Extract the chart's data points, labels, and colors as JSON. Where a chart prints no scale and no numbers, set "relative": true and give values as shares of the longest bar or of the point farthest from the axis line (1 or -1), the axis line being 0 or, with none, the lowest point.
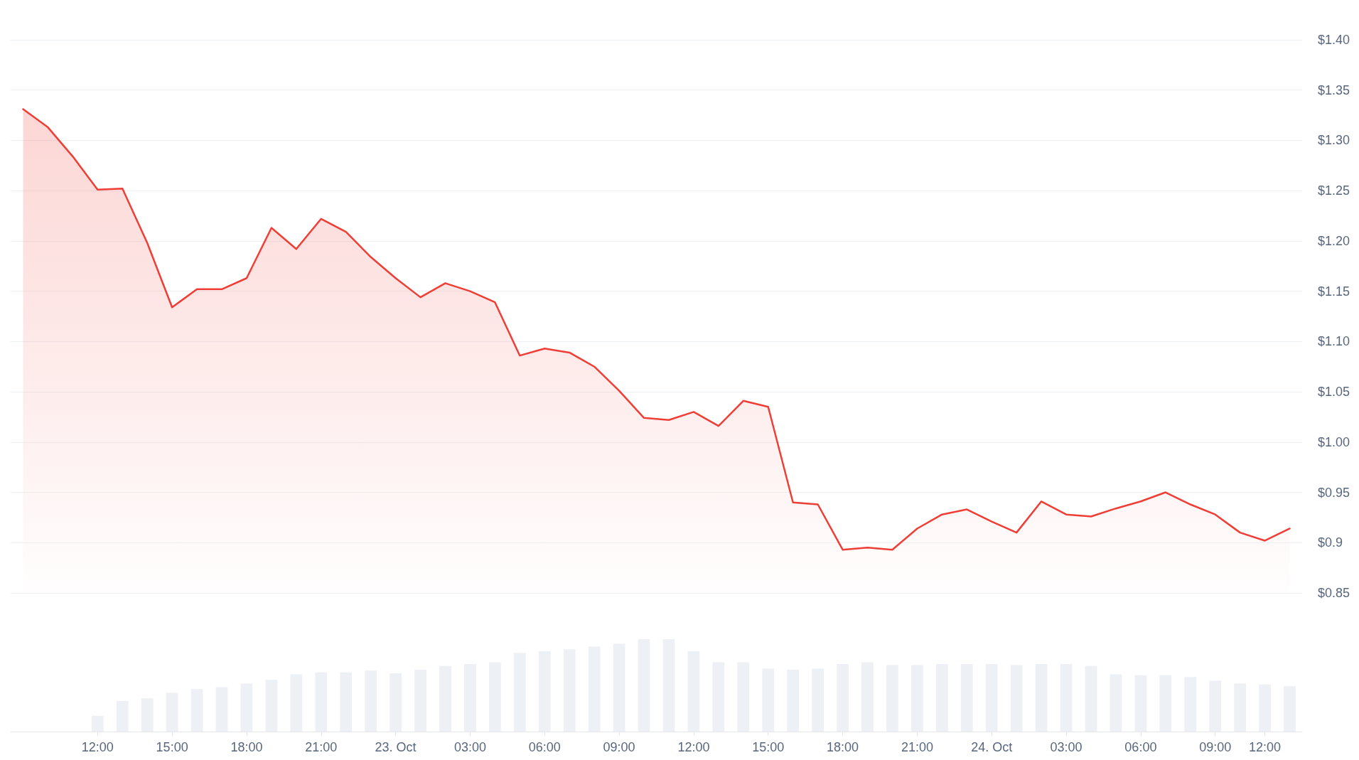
{
  "chart_data": [
    {
      "type": "area",
      "categories": [
        null,
        null,
        null,
        null,
        null,
        null,
        null,
        null,
        null,
        null,
        null,
        null,
        null,
        null,
        null,
        null,
        null,
        null,
        null,
        null,
        null,
        null,
        null,
        null,
        null,
        null,
        null,
        null,
        null,
        null,
        null,
        null,
        null,
        null,
        null,
        null,
        null,
        null,
        null,
        null,
        null,
        null,
        null,
        null,
        null,
        null,
        null,
        null,
        null,
        null,
        null,
        null
      ],
      "values": [
        1.331,
        1.313,
        1.284,
        1.251,
        1.252,
        1.198,
        1.134,
        1.152,
        1.152,
        1.163,
        1.213,
        1.192,
        1.222,
        1.209,
        1.184,
        1.163,
        1.144,
        1.158,
        1.15,
        1.139,
        1.086,
        1.093,
        1.089,
        1.075,
        1.051,
        1.024,
        1.022,
        1.03,
        1.016,
        1.041,
        1.035,
        0.94,
        0.938,
        0.893,
        0.895,
        0.893,
        0.914,
        0.928,
        0.933,
        0.921,
        0.91,
        0.941,
        0.928,
        0.926,
        0.934,
        0.941,
        0.95,
        0.938,
        0.928,
        0.91,
        0.902,
        0.914
      ],
      "color": "#ef3e36",
      "ylim": [
        0.85,
        1.4
      ],
      "yticks": [
        {
          "value": 0.85,
          "label": "$0.85"
        },
        {
          "value": 0.9,
          "label": "$0.9"
        },
        {
          "value": 0.95,
          "label": "$0.95"
        },
        {
          "value": 1.0,
          "label": "$1.00"
        },
        {
          "value": 1.05,
          "label": "$1.05"
        },
        {
          "value": 1.1,
          "label": "$1.10"
        },
        {
          "value": 1.15,
          "label": "$1.15"
        },
        {
          "value": 1.2,
          "label": "$1.20"
        },
        {
          "value": 1.25,
          "label": "$1.25"
        },
        {
          "value": 1.3,
          "label": "$1.30"
        },
        {
          "value": 1.35,
          "label": "$1.35"
        },
        {
          "value": 1.4,
          "label": "$1.40"
        }
      ],
      "grid": "y",
      "marker": "none",
      "line_style": "solid"
    },
    {
      "type": "bar",
      "categories": [
        null,
        null,
        null,
        "12:00",
        null,
        null,
        "15:00",
        null,
        null,
        "18:00",
        null,
        null,
        "21:00",
        null,
        null,
        "23. Oct",
        null,
        null,
        "03:00",
        null,
        null,
        "06:00",
        null,
        null,
        "09:00",
        null,
        null,
        "12:00",
        null,
        null,
        "15:00",
        null,
        null,
        "18:00",
        null,
        null,
        "21:00",
        null,
        null,
        "24. Oct",
        null,
        null,
        "03:00",
        null,
        null,
        "06:00",
        null,
        null,
        "09:00",
        null,
        "12:00",
        null
      ],
      "values": [
        null,
        null,
        null,
        0.17,
        0.33,
        0.36,
        0.42,
        0.46,
        0.48,
        0.52,
        0.56,
        0.62,
        0.64,
        0.64,
        0.66,
        0.63,
        0.67,
        0.71,
        0.73,
        0.75,
        0.85,
        0.87,
        0.89,
        0.92,
        0.95,
        1,
        1,
        0.87,
        0.75,
        0.75,
        0.68,
        0.67,
        0.68,
        0.73,
        0.75,
        0.72,
        0.72,
        0.73,
        0.73,
        0.73,
        0.72,
        0.73,
        0.73,
        0.71,
        0.62,
        0.61,
        0.61,
        0.59,
        0.55,
        0.52,
        0.51,
        0.49
      ],
      "color": "#edf0f4",
      "relative": true
    }
  ]
}
